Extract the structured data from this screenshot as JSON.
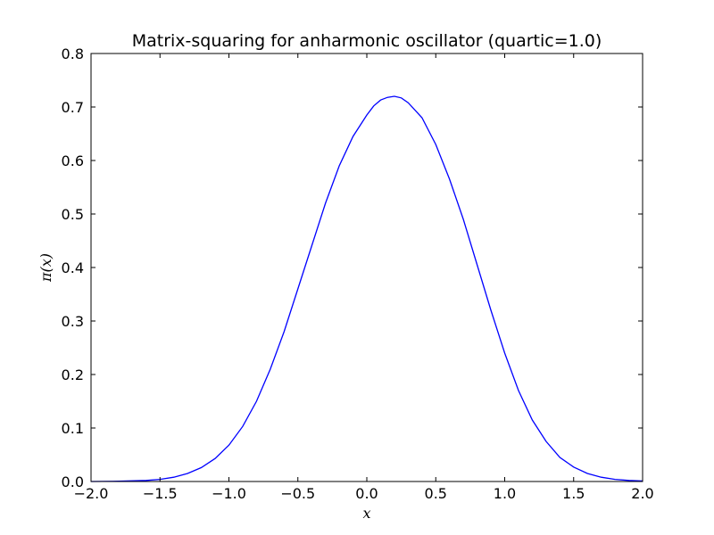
{
  "chart_data": {
    "type": "line",
    "title": "Matrix-squaring for anharmonic oscillator (quartic=1.0)",
    "xlabel": "x",
    "ylabel": "π(x)",
    "xlim": [
      -2.0,
      2.0
    ],
    "ylim": [
      0.0,
      0.8
    ],
    "xticks": [
      -2.0,
      -1.5,
      -1.0,
      -0.5,
      0.0,
      0.5,
      1.0,
      1.5,
      2.0
    ],
    "xtick_labels": [
      "−2.0",
      "−1.5",
      "−1.0",
      "−0.5",
      "0.0",
      "0.5",
      "1.0",
      "1.5",
      "2.0"
    ],
    "yticks": [
      0.0,
      0.1,
      0.2,
      0.3,
      0.4,
      0.5,
      0.6,
      0.7,
      0.8
    ],
    "ytick_labels": [
      "0.0",
      "0.1",
      "0.2",
      "0.3",
      "0.4",
      "0.5",
      "0.6",
      "0.7",
      "0.8"
    ],
    "grid": false,
    "series": [
      {
        "color": "#0000ff",
        "x": [
          -2.0,
          -1.8,
          -1.6,
          -1.5,
          -1.4,
          -1.3,
          -1.2,
          -1.1,
          -1.0,
          -0.9,
          -0.8,
          -0.7,
          -0.6,
          -0.5,
          -0.4,
          -0.3,
          -0.2,
          -0.1,
          0.0,
          0.05,
          0.1,
          0.15,
          0.2,
          0.25,
          0.3,
          0.4,
          0.5,
          0.6,
          0.7,
          0.8,
          0.9,
          1.0,
          1.1,
          1.2,
          1.3,
          1.4,
          1.5,
          1.6,
          1.7,
          1.8,
          1.9,
          2.0
        ],
        "y": [
          0.0,
          0.0005,
          0.002,
          0.004,
          0.008,
          0.015,
          0.026,
          0.043,
          0.068,
          0.103,
          0.15,
          0.21,
          0.28,
          0.36,
          0.44,
          0.52,
          0.59,
          0.645,
          0.685,
          0.702,
          0.713,
          0.718,
          0.72,
          0.717,
          0.708,
          0.68,
          0.63,
          0.565,
          0.49,
          0.405,
          0.32,
          0.24,
          0.17,
          0.115,
          0.075,
          0.045,
          0.027,
          0.015,
          0.008,
          0.004,
          0.002,
          0.001
        ]
      }
    ]
  }
}
